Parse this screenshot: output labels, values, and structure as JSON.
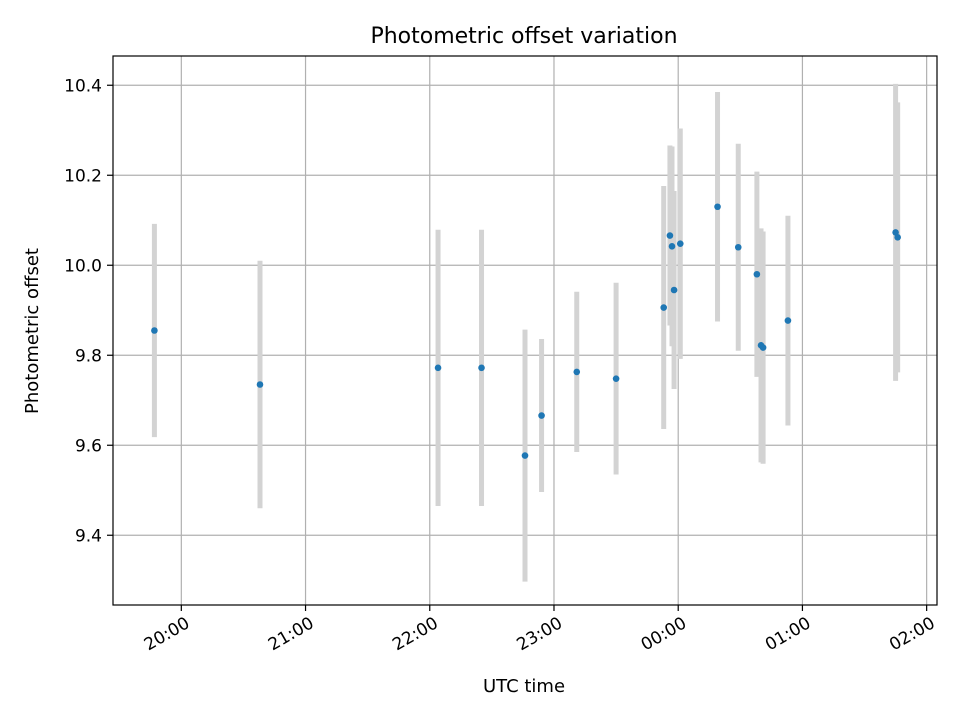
{
  "chart_data": {
    "type": "scatter",
    "title": "Photometric offset variation",
    "xlabel": "UTC time",
    "ylabel": "Photometric offset",
    "x_axis": "time",
    "xlim": [
      "19:27",
      "02:05"
    ],
    "ylim": [
      9.245,
      10.465
    ],
    "grid": true,
    "legend": "none",
    "x_ticks": [
      {
        "time": "20:00",
        "label": "20:00"
      },
      {
        "time": "21:00",
        "label": "21:00"
      },
      {
        "time": "22:00",
        "label": "22:00"
      },
      {
        "time": "23:00",
        "label": "23:00"
      },
      {
        "time": "00:00",
        "label": "00:00"
      },
      {
        "time": "01:00",
        "label": "01:00"
      },
      {
        "time": "02:00",
        "label": "02:00"
      }
    ],
    "y_ticks": [
      {
        "value": 9.4,
        "label": "9.4"
      },
      {
        "value": 9.6,
        "label": "9.6"
      },
      {
        "value": 9.8,
        "label": "9.8"
      },
      {
        "value": 10.0,
        "label": "10.0"
      },
      {
        "value": 10.2,
        "label": "10.2"
      },
      {
        "value": 10.4,
        "label": "10.4"
      }
    ],
    "colors": {
      "point": "#1f77b4",
      "errorbar": "#d3d3d3",
      "grid": "#b0b0b0"
    },
    "points": [
      {
        "time": "19:47",
        "y": 9.855,
        "yerr": 0.237
      },
      {
        "time": "20:38",
        "y": 9.735,
        "yerr": 0.275
      },
      {
        "time": "22:04",
        "y": 9.772,
        "yerr": 0.307
      },
      {
        "time": "22:25",
        "y": 9.772,
        "yerr": 0.307
      },
      {
        "time": "22:46",
        "y": 9.577,
        "yerr": 0.28
      },
      {
        "time": "22:54",
        "y": 9.666,
        "yerr": 0.17
      },
      {
        "time": "23:11",
        "y": 9.763,
        "yerr": 0.178
      },
      {
        "time": "23:30",
        "y": 9.748,
        "yerr": 0.213
      },
      {
        "time": "23:53",
        "y": 9.906,
        "yerr": 0.27
      },
      {
        "time": "23:56",
        "y": 10.066,
        "yerr": 0.2
      },
      {
        "time": "23:57",
        "y": 10.042,
        "yerr": 0.222
      },
      {
        "time": "23:58",
        "y": 9.945,
        "yerr": 0.22
      },
      {
        "time": "00:01",
        "y": 10.048,
        "yerr": 0.256
      },
      {
        "time": "00:19",
        "y": 10.13,
        "yerr": 0.255
      },
      {
        "time": "00:29",
        "y": 10.04,
        "yerr": 0.23
      },
      {
        "time": "00:38",
        "y": 9.98,
        "yerr": 0.228
      },
      {
        "time": "00:40",
        "y": 9.822,
        "yerr": 0.26
      },
      {
        "time": "00:41",
        "y": 9.817,
        "yerr": 0.258
      },
      {
        "time": "00:53",
        "y": 9.877,
        "yerr": 0.233
      },
      {
        "time": "01:45",
        "y": 10.073,
        "yerr": 0.33
      },
      {
        "time": "01:46",
        "y": 10.062,
        "yerr": 0.3
      }
    ]
  }
}
